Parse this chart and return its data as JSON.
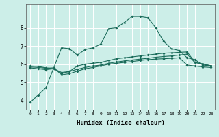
{
  "background_color": "#cceee8",
  "grid_color": "#ffffff",
  "line_color": "#1a6b5a",
  "xlabel": "Humidex (Indice chaleur)",
  "ylim": [
    3.5,
    9.3
  ],
  "xlim": [
    -0.5,
    23.5
  ],
  "yticks": [
    4,
    5,
    6,
    7,
    8
  ],
  "xticks": [
    0,
    1,
    2,
    3,
    4,
    5,
    6,
    7,
    8,
    9,
    10,
    11,
    12,
    13,
    14,
    15,
    16,
    17,
    18,
    19,
    20,
    21,
    22,
    23
  ],
  "series1": {
    "x": [
      0,
      1,
      2,
      3,
      4,
      5,
      6,
      7,
      8,
      9,
      10,
      11,
      12,
      13,
      14,
      15,
      16,
      17,
      18,
      19,
      20,
      21,
      22,
      23
    ],
    "y": [
      3.9,
      4.3,
      4.7,
      5.8,
      6.9,
      6.85,
      6.5,
      6.8,
      6.9,
      7.1,
      7.95,
      8.0,
      8.3,
      8.62,
      8.62,
      8.55,
      8.0,
      7.25,
      6.85,
      6.75,
      6.35,
      6.25,
      5.95,
      5.9
    ]
  },
  "series2": {
    "x": [
      0,
      1,
      2,
      3,
      4,
      5,
      6,
      7,
      8,
      9,
      10,
      11,
      12,
      13,
      14,
      15,
      16,
      17,
      18,
      19,
      20,
      21,
      22,
      23
    ],
    "y": [
      5.8,
      5.75,
      5.7,
      5.75,
      5.5,
      5.6,
      5.9,
      6.0,
      6.05,
      6.1,
      6.2,
      6.3,
      6.35,
      6.4,
      6.45,
      6.5,
      6.55,
      6.6,
      6.62,
      6.65,
      6.67,
      6.1,
      6.0,
      5.9
    ]
  },
  "series3": {
    "x": [
      0,
      1,
      2,
      3,
      4,
      5,
      6,
      7,
      8,
      9,
      10,
      11,
      12,
      13,
      14,
      15,
      16,
      17,
      18,
      19,
      20,
      21,
      22,
      23
    ],
    "y": [
      5.85,
      5.82,
      5.78,
      5.8,
      5.42,
      5.48,
      5.62,
      5.75,
      5.82,
      5.9,
      6.0,
      6.05,
      6.1,
      6.15,
      6.2,
      6.25,
      6.28,
      6.3,
      6.32,
      6.35,
      5.95,
      5.9,
      5.85,
      5.82
    ]
  },
  "series4": {
    "x": [
      0,
      1,
      2,
      3,
      4,
      5,
      6,
      7,
      8,
      9,
      10,
      11,
      12,
      13,
      14,
      15,
      16,
      17,
      18,
      19,
      20,
      21,
      22,
      23
    ],
    "y": [
      5.9,
      5.88,
      5.8,
      5.75,
      5.55,
      5.6,
      5.72,
      5.82,
      5.9,
      5.95,
      6.05,
      6.12,
      6.18,
      6.23,
      6.28,
      6.32,
      6.38,
      6.42,
      6.45,
      6.5,
      6.55,
      6.08,
      6.02,
      5.92
    ]
  }
}
